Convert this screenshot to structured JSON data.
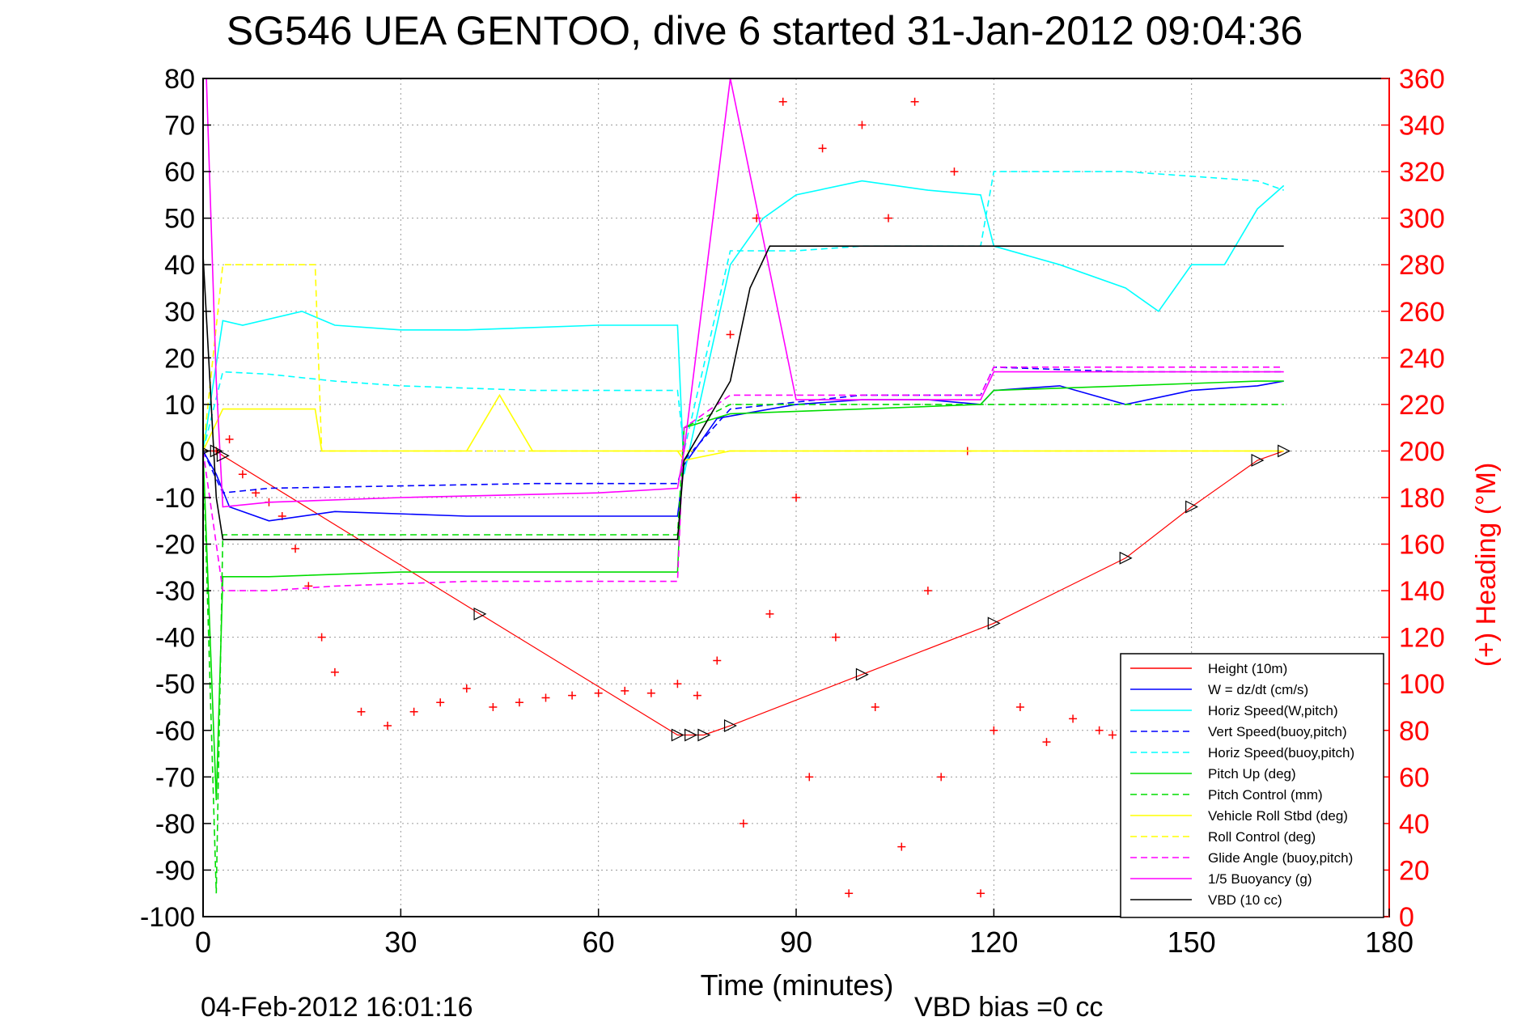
{
  "chart_data": {
    "type": "line",
    "title": "SG546 UEA GENTOO, dive 6 started 31-Jan-2012 09:04:36",
    "xlabel": "Time (minutes)",
    "ylabel": "",
    "y2label": "(+) Heading (°M)",
    "xlim": [
      0,
      180
    ],
    "ylim": [
      -100,
      80
    ],
    "y2lim": [
      0,
      360
    ],
    "xticks": [
      "0",
      "30",
      "60",
      "90",
      "120",
      "150",
      "180"
    ],
    "yticks": [
      "80",
      "70",
      "60",
      "50",
      "40",
      "30",
      "20",
      "10",
      "0",
      "-10",
      "-20",
      "-30",
      "-40",
      "-50",
      "-60",
      "-70",
      "-80",
      "-90",
      "-100"
    ],
    "y2ticks": [
      "360",
      "340",
      "320",
      "300",
      "280",
      "260",
      "240",
      "220",
      "200",
      "180",
      "160",
      "140",
      "120",
      "100",
      "80",
      "60",
      "40",
      "20",
      "0"
    ],
    "grid": true,
    "legend_position": "bottom-right",
    "footer_left": "04-Feb-2012 16:01:16",
    "footer_right": "VBD bias =0 cc",
    "colors": {
      "axis": "#000000",
      "right_axis": "#ff0000",
      "grid": "#9a9a9a"
    },
    "series": [
      {
        "name": "Height (10m)",
        "color": "#ff0000",
        "dash": "solid",
        "x": [
          0,
          2,
          3,
          42,
          72,
          74,
          76,
          80,
          100,
          120,
          140,
          150,
          160,
          164
        ],
        "values": [
          0,
          0,
          -1,
          -35,
          -61,
          -61,
          -61,
          -59,
          -48,
          -37,
          -23,
          -12,
          -2,
          0
        ]
      },
      {
        "name": "W  = dz/dt (cm/s)",
        "color": "#0000ff",
        "dash": "solid",
        "x": [
          0,
          2,
          4,
          10,
          20,
          40,
          60,
          72,
          73,
          78,
          90,
          100,
          110,
          118,
          120,
          130,
          140,
          150,
          160,
          164
        ],
        "values": [
          0,
          -5,
          -12,
          -15,
          -13,
          -14,
          -14,
          -14,
          -3,
          7,
          10,
          11,
          11,
          10,
          13,
          14,
          10,
          13,
          14,
          15
        ]
      },
      {
        "name": "Horiz Speed(W,pitch)",
        "color": "#00ffff",
        "dash": "solid",
        "x": [
          0,
          3,
          6,
          15,
          20,
          30,
          40,
          60,
          72,
          73,
          80,
          85,
          90,
          100,
          110,
          118,
          120,
          130,
          140,
          145,
          150,
          155,
          160,
          164
        ],
        "values": [
          0,
          28,
          27,
          30,
          27,
          26,
          26,
          27,
          27,
          -5,
          40,
          50,
          55,
          58,
          56,
          55,
          44,
          40,
          35,
          30,
          40,
          40,
          52,
          57
        ]
      },
      {
        "name": "Vert Speed(buoy,pitch)",
        "color": "#0000ff",
        "dash": "dashed",
        "x": [
          0,
          3,
          10,
          30,
          50,
          72,
          73,
          80,
          100,
          118,
          120,
          140,
          164
        ],
        "values": [
          0,
          -9,
          -8,
          -7.5,
          -7,
          -7,
          -2,
          9,
          12,
          12,
          18,
          17,
          17
        ]
      },
      {
        "name": "Horiz Speed(buoy,pitch)",
        "color": "#00ffff",
        "dash": "dashed",
        "x": [
          0,
          3,
          10,
          20,
          30,
          50,
          72,
          73,
          80,
          90,
          100,
          118,
          120,
          140,
          160,
          164
        ],
        "values": [
          0,
          17,
          16.5,
          15,
          14,
          13,
          13,
          0,
          43,
          43,
          44,
          44,
          60,
          60,
          58,
          56
        ]
      },
      {
        "name": "Pitch Up (deg)",
        "color": "#00dd00",
        "dash": "solid",
        "x": [
          0,
          2,
          3,
          5,
          10,
          30,
          60,
          72,
          73,
          80,
          100,
          118,
          120,
          140,
          160,
          164
        ],
        "values": [
          0,
          -75,
          -27,
          -27,
          -27,
          -26,
          -26,
          -26,
          5,
          8,
          9,
          10,
          13,
          14,
          15,
          15
        ]
      },
      {
        "name": "Pitch Control (mm)",
        "color": "#00dd00",
        "dash": "dashed",
        "x": [
          0,
          2,
          3,
          10,
          40,
          72,
          73,
          80,
          100,
          118,
          120,
          164
        ],
        "values": [
          0,
          -95,
          -18,
          -18,
          -18,
          -18,
          5,
          10,
          10,
          10,
          10,
          10
        ]
      },
      {
        "name": "Vehicle Roll Stbd (deg)",
        "color": "#ffff00",
        "dash": "solid",
        "x": [
          0,
          3,
          10,
          17,
          18,
          30,
          40,
          45,
          50,
          72,
          73,
          80,
          100,
          118,
          120,
          140,
          164
        ],
        "values": [
          0,
          9,
          9,
          9,
          0,
          0,
          0,
          12,
          0,
          0,
          -2,
          0,
          0,
          0,
          0,
          0,
          0
        ]
      },
      {
        "name": "Roll Control (deg)",
        "color": "#ffff00",
        "dash": "dashed",
        "x": [
          0,
          3,
          17,
          18,
          72,
          73,
          80,
          100,
          118,
          120,
          164
        ],
        "values": [
          0,
          40,
          40,
          0,
          0,
          0,
          0,
          0,
          0,
          0,
          0
        ]
      },
      {
        "name": "Glide Angle (buoy,pitch)",
        "color": "#ff00ff",
        "dash": "dashed",
        "x": [
          0,
          3,
          10,
          20,
          40,
          72,
          73,
          80,
          100,
          118,
          120,
          140,
          164
        ],
        "values": [
          0,
          -30,
          -30,
          -29,
          -28,
          -28,
          5,
          12,
          12,
          12,
          18,
          18,
          18
        ]
      },
      {
        "name": "1/5 Buoyancy (g)",
        "color": "#ff00ff",
        "dash": "solid",
        "x": [
          0.5,
          2,
          3,
          10,
          30,
          60,
          72,
          73,
          80,
          90,
          100,
          118,
          120,
          140,
          164
        ],
        "values": [
          80,
          15,
          -12,
          -11,
          -10,
          -9,
          -8,
          0,
          80,
          11,
          11,
          11,
          17,
          17,
          17
        ]
      },
      {
        "name": "VBD (10 cc)",
        "color": "#000000",
        "dash": "solid",
        "x": [
          0,
          2,
          3,
          72,
          73,
          80,
          83,
          86,
          100,
          120,
          164
        ],
        "values": [
          42,
          -10,
          -19,
          -19,
          -2,
          15,
          35,
          44,
          44,
          44,
          44
        ]
      }
    ],
    "heading_series": {
      "name": "(+) Heading",
      "axis": "right",
      "color": "#ff0000",
      "marker": "+",
      "x": [
        0,
        2,
        4,
        6,
        8,
        10,
        12,
        14,
        16,
        18,
        20,
        24,
        28,
        32,
        36,
        40,
        44,
        48,
        52,
        56,
        60,
        64,
        68,
        72,
        75,
        78,
        80,
        82,
        84,
        86,
        88,
        90,
        92,
        94,
        96,
        98,
        100,
        102,
        104,
        106,
        108,
        110,
        112,
        114,
        116,
        118,
        120,
        124,
        128,
        132,
        136,
        138
      ],
      "values": [
        240,
        200,
        205,
        190,
        182,
        178,
        172,
        158,
        142,
        120,
        105,
        88,
        82,
        88,
        92,
        98,
        90,
        92,
        94,
        95,
        96,
        97,
        96,
        100,
        95,
        110,
        250,
        40,
        300,
        130,
        350,
        180,
        60,
        330,
        120,
        10,
        340,
        90,
        300,
        30,
        350,
        140,
        60,
        320,
        200,
        10,
        80,
        90,
        75,
        85,
        80,
        78
      ]
    }
  }
}
